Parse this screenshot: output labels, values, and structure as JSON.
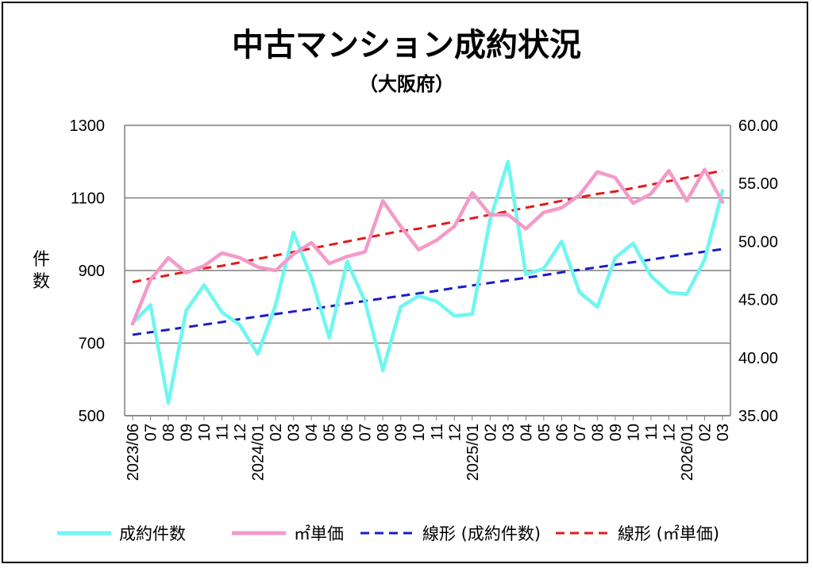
{
  "title": "中古マンション成約状況",
  "subtitle": "（大阪府）",
  "chart_data": {
    "type": "line",
    "x": [
      "2023/06",
      "07",
      "08",
      "09",
      "10",
      "11",
      "12",
      "2024/01",
      "02",
      "03",
      "04",
      "05",
      "06",
      "07",
      "08",
      "09",
      "10",
      "11",
      "12",
      "2025/01",
      "02",
      "03",
      "04",
      "05",
      "06",
      "07",
      "08",
      "09",
      "10",
      "11",
      "12",
      "2026/01",
      "02",
      "03"
    ],
    "ylabel": "件数",
    "ylim": [
      500,
      1300
    ],
    "yticks": [
      "500",
      "700",
      "900",
      "1100",
      "1300"
    ],
    "y2lim": [
      35,
      60
    ],
    "y2ticks": [
      "35.00",
      "40.00",
      "45.00",
      "50.00",
      "55.00",
      "60.00"
    ],
    "grid": true,
    "legend": "bottom",
    "series": [
      {
        "name": "成約件数",
        "axis": "left",
        "color": "#6ef7f0",
        "style": "solid",
        "values": [
          755,
          805,
          535,
          790,
          860,
          785,
          750,
          670,
          805,
          1005,
          880,
          715,
          925,
          815,
          625,
          800,
          830,
          815,
          775,
          780,
          1040,
          1200,
          890,
          905,
          980,
          840,
          800,
          935,
          975,
          885,
          840,
          835,
          930,
          1120
        ]
      },
      {
        "name": "㎡単価",
        "axis": "right",
        "color": "#f49ac8",
        "style": "solid",
        "values": [
          42.9,
          46.7,
          48.6,
          47.3,
          47.9,
          49.0,
          48.6,
          47.8,
          47.5,
          48.9,
          49.9,
          48.1,
          48.7,
          49.1,
          53.5,
          51.3,
          49.3,
          50.1,
          51.3,
          54.2,
          52.3,
          52.3,
          51.1,
          52.5,
          52.9,
          54.0,
          56.0,
          55.5,
          53.3,
          54.1,
          56.1,
          53.5,
          56.2,
          53.4
        ]
      },
      {
        "name": "線形 (成約件数)",
        "axis": "left",
        "color": "#1c1cc8",
        "style": "dashed",
        "values": [
          723,
          730,
          737,
          744,
          751,
          758,
          766,
          773,
          780,
          787,
          794,
          801,
          809,
          816,
          823,
          830,
          837,
          844,
          852,
          859,
          866,
          873,
          880,
          887,
          895,
          902,
          909,
          916,
          923,
          930,
          938,
          945,
          952,
          959
        ]
      },
      {
        "name": "線形 (㎡単価)",
        "axis": "right",
        "color": "#e21b1b",
        "style": "dashed",
        "values": [
          46.5,
          46.8,
          47.1,
          47.4,
          47.7,
          47.9,
          48.2,
          48.5,
          48.8,
          49.1,
          49.4,
          49.7,
          50.0,
          50.3,
          50.6,
          50.9,
          51.1,
          51.4,
          51.7,
          52.0,
          52.3,
          52.6,
          52.9,
          53.2,
          53.5,
          53.8,
          54.1,
          54.3,
          54.6,
          54.9,
          55.2,
          55.5,
          55.8,
          56.1
        ]
      }
    ]
  }
}
